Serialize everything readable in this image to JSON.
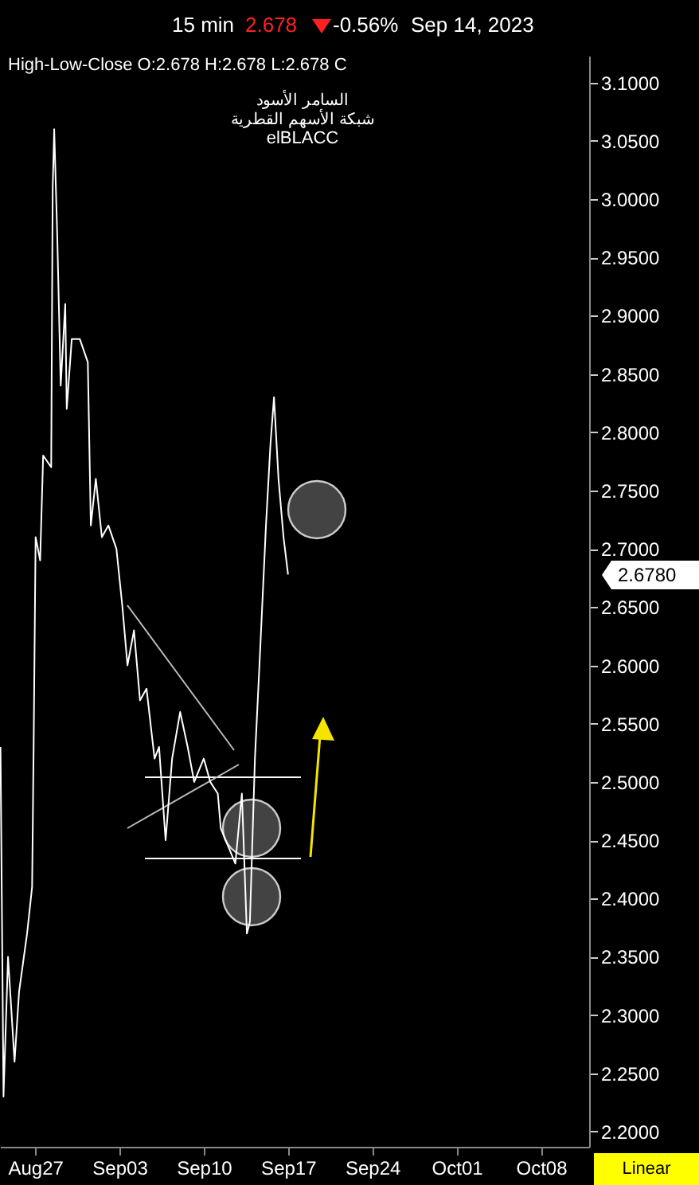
{
  "chart_data": {
    "type": "line",
    "annotations": [
      "15 min",
      "2.678",
      "-0.56%",
      "Sep 14, 2023",
      "High-Low-Close   O:2.678   H:2.678   L:2.678   C",
      "السامر الأسود",
      "شبكة الأسهم القطرية",
      "elBLACC",
      "Linear",
      "2.6780"
    ],
    "x": [
      "2023-08-24T03:00",
      "2023-08-24T09:00",
      "2023-08-24T18:00",
      "2023-08-25T07:00",
      "2023-08-25T16:00",
      "2023-08-26T08:00",
      "2023-08-26T18:00",
      "2023-08-26T21:00",
      "2023-08-27T01:00",
      "2023-08-27T10:00",
      "2023-08-27T16:00",
      "2023-08-28T08:00",
      "2023-08-28T11:00",
      "2023-08-28T14:00",
      "2023-08-28T20:00",
      "2023-08-29T03:00",
      "2023-08-29T12:00",
      "2023-08-29T15:00",
      "2023-08-30T01:00",
      "2023-08-30T17:00",
      "2023-08-31T09:00",
      "2023-08-31T15:00",
      "2023-09-01T01:00",
      "2023-09-01T13:00",
      "2023-09-02T02:00",
      "2023-09-02T18:00",
      "2023-09-03T06:00",
      "2023-09-03T16:00",
      "2023-09-04T05:00",
      "2023-09-04T17:00",
      "2023-09-05T06:00",
      "2023-09-05T22:00",
      "2023-09-06T07:00",
      "2023-09-06T20:00",
      "2023-09-07T09:00",
      "2023-09-08T01:00",
      "2023-09-08T16:00",
      "2023-09-09T05:00",
      "2023-09-10T00:00",
      "2023-09-10T13:00",
      "2023-09-11T04:00",
      "2023-09-11T10:00",
      "2023-09-12T15:00",
      "2023-09-13T04:00",
      "2023-09-13T14:00",
      "2023-09-13T20:00",
      "2023-09-14T06:00",
      "2023-09-14T15:00",
      "2023-09-15T04:00",
      "2023-09-15T13:00",
      "2023-09-15T20:00",
      "2023-09-16T05:00",
      "2023-09-16T15:00",
      "2023-09-17T00:00"
    ],
    "series": [
      {
        "color": "#ffffff",
        "values": [
          2.53,
          2.23,
          2.35,
          2.26,
          2.32,
          2.37,
          2.41,
          2.53,
          2.71,
          2.69,
          2.78,
          2.77,
          3.01,
          3.06,
          2.97,
          2.84,
          2.91,
          2.82,
          2.88,
          2.88,
          2.86,
          2.72,
          2.76,
          2.71,
          2.72,
          2.7,
          2.65,
          2.6,
          2.63,
          2.57,
          2.58,
          2.52,
          2.53,
          2.45,
          2.52,
          2.56,
          2.53,
          2.5,
          2.52,
          2.5,
          2.49,
          2.46,
          2.43,
          2.49,
          2.37,
          2.38,
          2.52,
          2.6,
          2.72,
          2.79,
          2.83,
          2.76,
          2.71,
          2.678
        ]
      }
    ],
    "xlim": [
      "2023-08-24T02:00",
      "2023-10-12T00:00"
    ],
    "xticks": [
      {
        "value": "2023-08-27",
        "label": "Aug27"
      },
      {
        "value": "2023-09-03",
        "label": "Sep03"
      },
      {
        "value": "2023-09-10",
        "label": "Sep10"
      },
      {
        "value": "2023-09-17",
        "label": "Sep17"
      },
      {
        "value": "2023-09-24",
        "label": "Sep24"
      },
      {
        "value": "2023-10-01",
        "label": "Oct01"
      },
      {
        "value": "2023-10-08",
        "label": "Oct08"
      }
    ],
    "ylim": [
      2.187,
      3.123
    ],
    "yticks": [
      {
        "value": 2.2,
        "label": "2.2000"
      },
      {
        "value": 2.25,
        "label": "2.2500"
      },
      {
        "value": 2.3,
        "label": "2.3000"
      },
      {
        "value": 2.35,
        "label": "2.3500"
      },
      {
        "value": 2.4,
        "label": "2.4000"
      },
      {
        "value": 2.45,
        "label": "2.4500"
      },
      {
        "value": 2.5,
        "label": "2.5000"
      },
      {
        "value": 2.55,
        "label": "2.5500"
      },
      {
        "value": 2.6,
        "label": "2.6000"
      },
      {
        "value": 2.65,
        "label": "2.6500"
      },
      {
        "value": 2.7,
        "label": "2.7000"
      },
      {
        "value": 2.75,
        "label": "2.7500"
      },
      {
        "value": 2.8,
        "label": "2.8000"
      },
      {
        "value": 2.85,
        "label": "2.8500"
      },
      {
        "value": 2.9,
        "label": "2.9000"
      },
      {
        "value": 2.95,
        "label": "2.9500"
      },
      {
        "value": 3.0,
        "label": "3.0000"
      },
      {
        "value": 3.05,
        "label": "3.0500"
      },
      {
        "value": 3.1,
        "label": "3.1000"
      }
    ]
  }
}
